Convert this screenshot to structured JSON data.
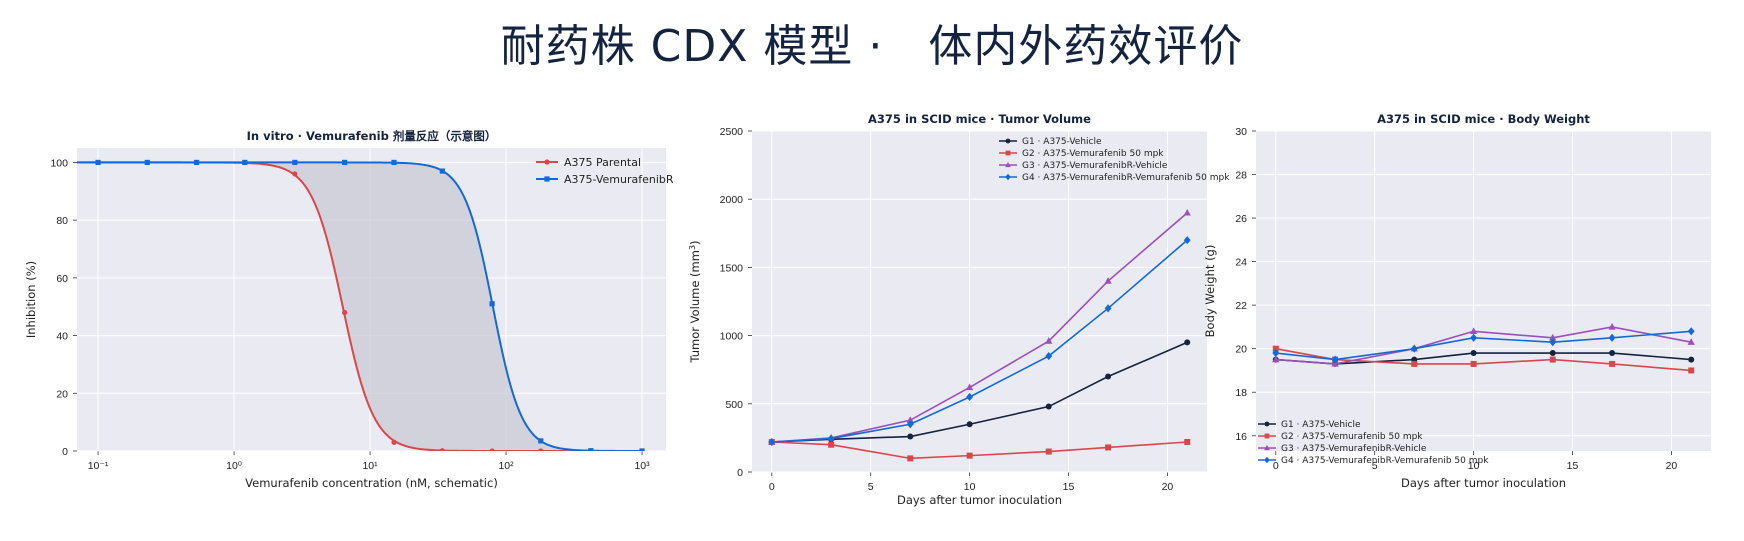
{
  "title": "耐药株 CDX 模型 ·   体内外药效评价",
  "colors": {
    "bg": "#eaeaf2",
    "grid": "#ffffff",
    "parental": "#d9474b",
    "resistant": "#1469d8",
    "G1": "#14233f",
    "G2": "#d9474b",
    "G3": "#9b4fb8",
    "G4": "#1469d8",
    "shade": "#c9cad6"
  },
  "chart_data": [
    {
      "type": "line",
      "title": "In vitro · Vemurafenib 剂量反应（示意图）",
      "xlabel": "Vemurafenib concentration (nM, schematic)",
      "ylabel": "Inhibition (%)",
      "xscale": "log",
      "xlim": [
        0.07,
        1500
      ],
      "ylim": [
        0,
        105
      ],
      "xticks": [
        0.1,
        1,
        10,
        100,
        1000
      ],
      "xtick_labels": [
        "10⁻¹",
        "10⁰",
        "10¹",
        "10²",
        "10³"
      ],
      "yticks": [
        0,
        20,
        40,
        60,
        80,
        100
      ],
      "legend": "top-right",
      "shaded_between_series": true,
      "series": [
        {
          "name": "A375 Parental",
          "color": "parental",
          "marker": "circle",
          "x": [
            0.1,
            0.23,
            0.53,
            1.2,
            2.8,
            6.5,
            15,
            34,
            79,
            180,
            420,
            1000
          ],
          "y": [
            100,
            100,
            100,
            100,
            96,
            48,
            3,
            0.1,
            0,
            0,
            0,
            0
          ],
          "curve": {
            "ic50": 6.3,
            "hill": 3.8
          }
        },
        {
          "name": "A375-VemurafenibR",
          "color": "resistant",
          "marker": "square",
          "x": [
            0.1,
            0.23,
            0.53,
            1.2,
            2.8,
            6.5,
            15,
            34,
            79,
            180,
            420,
            1000
          ],
          "y": [
            100,
            100,
            100,
            100,
            100,
            100,
            100,
            97,
            51,
            3.5,
            0.1,
            0
          ],
          "curve": {
            "ic50": 80,
            "hill": 4.1
          }
        }
      ]
    },
    {
      "type": "line",
      "title": "A375 in SCID mice · Tumor Volume",
      "xlabel": "Days after tumor inoculation",
      "ylabel": "Tumor Volume (mm",
      "ylabel_sup": "3",
      "ylabel_end": ")",
      "xlim": [
        -1,
        22
      ],
      "ylim": [
        0,
        2500
      ],
      "xticks": [
        0,
        5,
        10,
        15,
        20
      ],
      "yticks": [
        0,
        500,
        1000,
        1500,
        2000,
        2500
      ],
      "legend": "top-right",
      "x": [
        0,
        3,
        7,
        10,
        14,
        17,
        21
      ],
      "series": [
        {
          "name": "G1 · A375-Vehicle",
          "color": "G1",
          "marker": "circle",
          "values": [
            220,
            240,
            260,
            350,
            480,
            700,
            950
          ]
        },
        {
          "name": "G2 · A375-Vemurafenib 50 mpk",
          "color": "G2",
          "marker": "square",
          "values": [
            220,
            200,
            100,
            120,
            150,
            180,
            220
          ]
        },
        {
          "name": "G3 · A375-VemurafenibR-Vehicle",
          "color": "G3",
          "marker": "triangle",
          "values": [
            220,
            250,
            380,
            620,
            960,
            1400,
            1900
          ]
        },
        {
          "name": "G4 · A375-VemurafenibR-Vemurafenib 50 mpk",
          "color": "G4",
          "marker": "diamond",
          "values": [
            220,
            245,
            350,
            550,
            850,
            1200,
            1700
          ]
        }
      ]
    },
    {
      "type": "line",
      "title": "A375 in SCID mice · Body Weight",
      "xlabel": "Days after tumor inoculation",
      "ylabel": "Body Weight (g)",
      "xlim": [
        -1,
        22
      ],
      "ylim": [
        15.3,
        30
      ],
      "xticks": [
        0,
        5,
        10,
        15,
        20
      ],
      "yticks": [
        16,
        18,
        20,
        22,
        24,
        26,
        28,
        30
      ],
      "legend": "bottom-left",
      "x": [
        0,
        3,
        7,
        10,
        14,
        17,
        21
      ],
      "series": [
        {
          "name": "G1 · A375-Vehicle",
          "color": "G1",
          "marker": "circle",
          "values": [
            19.5,
            19.3,
            19.5,
            19.8,
            19.8,
            19.8,
            19.5
          ]
        },
        {
          "name": "G2 · A375-Vemurafenib 50 mpk",
          "color": "G2",
          "marker": "square",
          "values": [
            20.0,
            19.5,
            19.3,
            19.3,
            19.5,
            19.3,
            19.0
          ]
        },
        {
          "name": "G3 · A375-VemurafenibR-Vehicle",
          "color": "G3",
          "marker": "triangle",
          "values": [
            19.5,
            19.3,
            20.0,
            20.8,
            20.5,
            21.0,
            20.3
          ]
        },
        {
          "name": "G4 · A375-VemurafenibR-Vemurafenib 50 mpk",
          "color": "G4",
          "marker": "diamond",
          "values": [
            19.8,
            19.5,
            20.0,
            20.5,
            20.3,
            20.5,
            20.8
          ]
        }
      ]
    }
  ]
}
